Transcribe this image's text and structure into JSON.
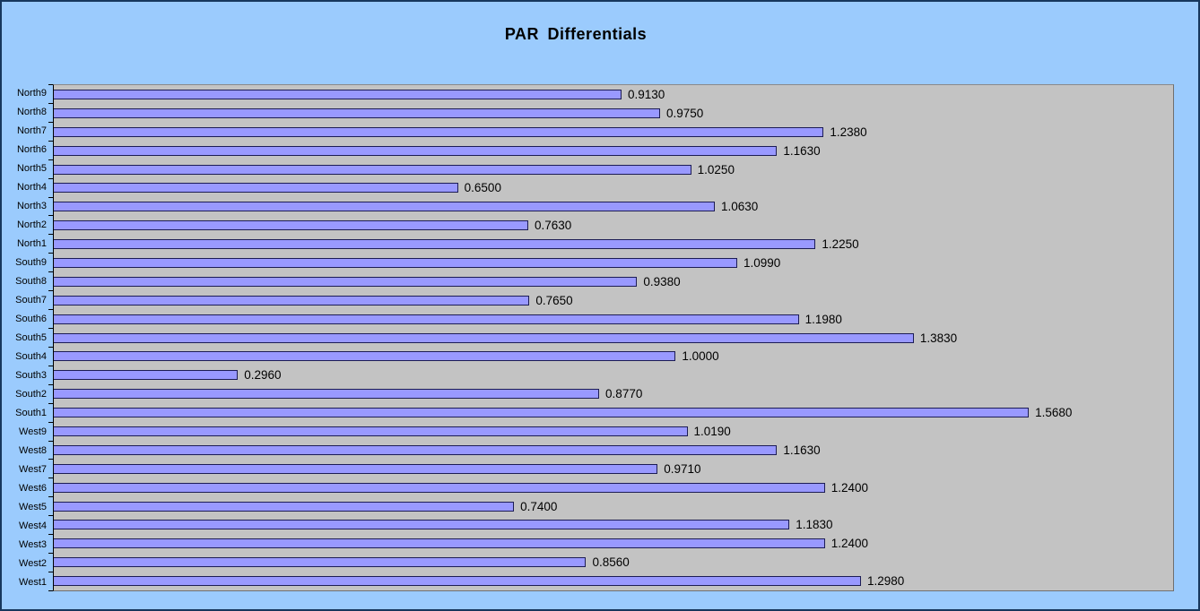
{
  "chart_data": {
    "type": "bar",
    "orientation": "horizontal",
    "title": "PAR Differentials",
    "categories": [
      "North9",
      "North8",
      "North7",
      "North6",
      "North5",
      "North4",
      "North3",
      "North2",
      "North1",
      "South9",
      "South8",
      "South7",
      "South6",
      "South5",
      "South4",
      "South3",
      "South2",
      "South1",
      "West9",
      "West8",
      "West7",
      "West6",
      "West5",
      "West4",
      "West3",
      "West2",
      "West1"
    ],
    "values": [
      0.913,
      0.975,
      1.238,
      1.163,
      1.025,
      0.65,
      1.063,
      0.763,
      1.225,
      1.099,
      0.938,
      0.765,
      1.198,
      1.383,
      1.0,
      0.296,
      0.877,
      1.568,
      1.019,
      1.163,
      0.971,
      1.24,
      0.74,
      1.183,
      1.24,
      0.856,
      1.298
    ],
    "value_labels": [
      "0.9130",
      "0.9750",
      "1.2380",
      "1.1630",
      "1.0250",
      "0.6500",
      "1.0630",
      "0.7630",
      "1.2250",
      "1.0990",
      "0.9380",
      "0.7650",
      "1.1980",
      "1.3830",
      "1.0000",
      "0.2960",
      "0.8770",
      "1.5680",
      "1.0190",
      "1.1630",
      "0.9710",
      "1.2400",
      "0.7400",
      "1.1830",
      "1.2400",
      "0.8560",
      "1.2980"
    ],
    "xlim": [
      0,
      1.8
    ],
    "grid": false,
    "legend": "none",
    "data_labels": "outside-end",
    "colors": {
      "chart_background": "#9BCBFD",
      "plot_background": "#C3C3C3",
      "bar_fill": "#9999FF",
      "bar_border": "#1C1C54",
      "text": "#000000",
      "frame_border": "#17375D"
    }
  }
}
